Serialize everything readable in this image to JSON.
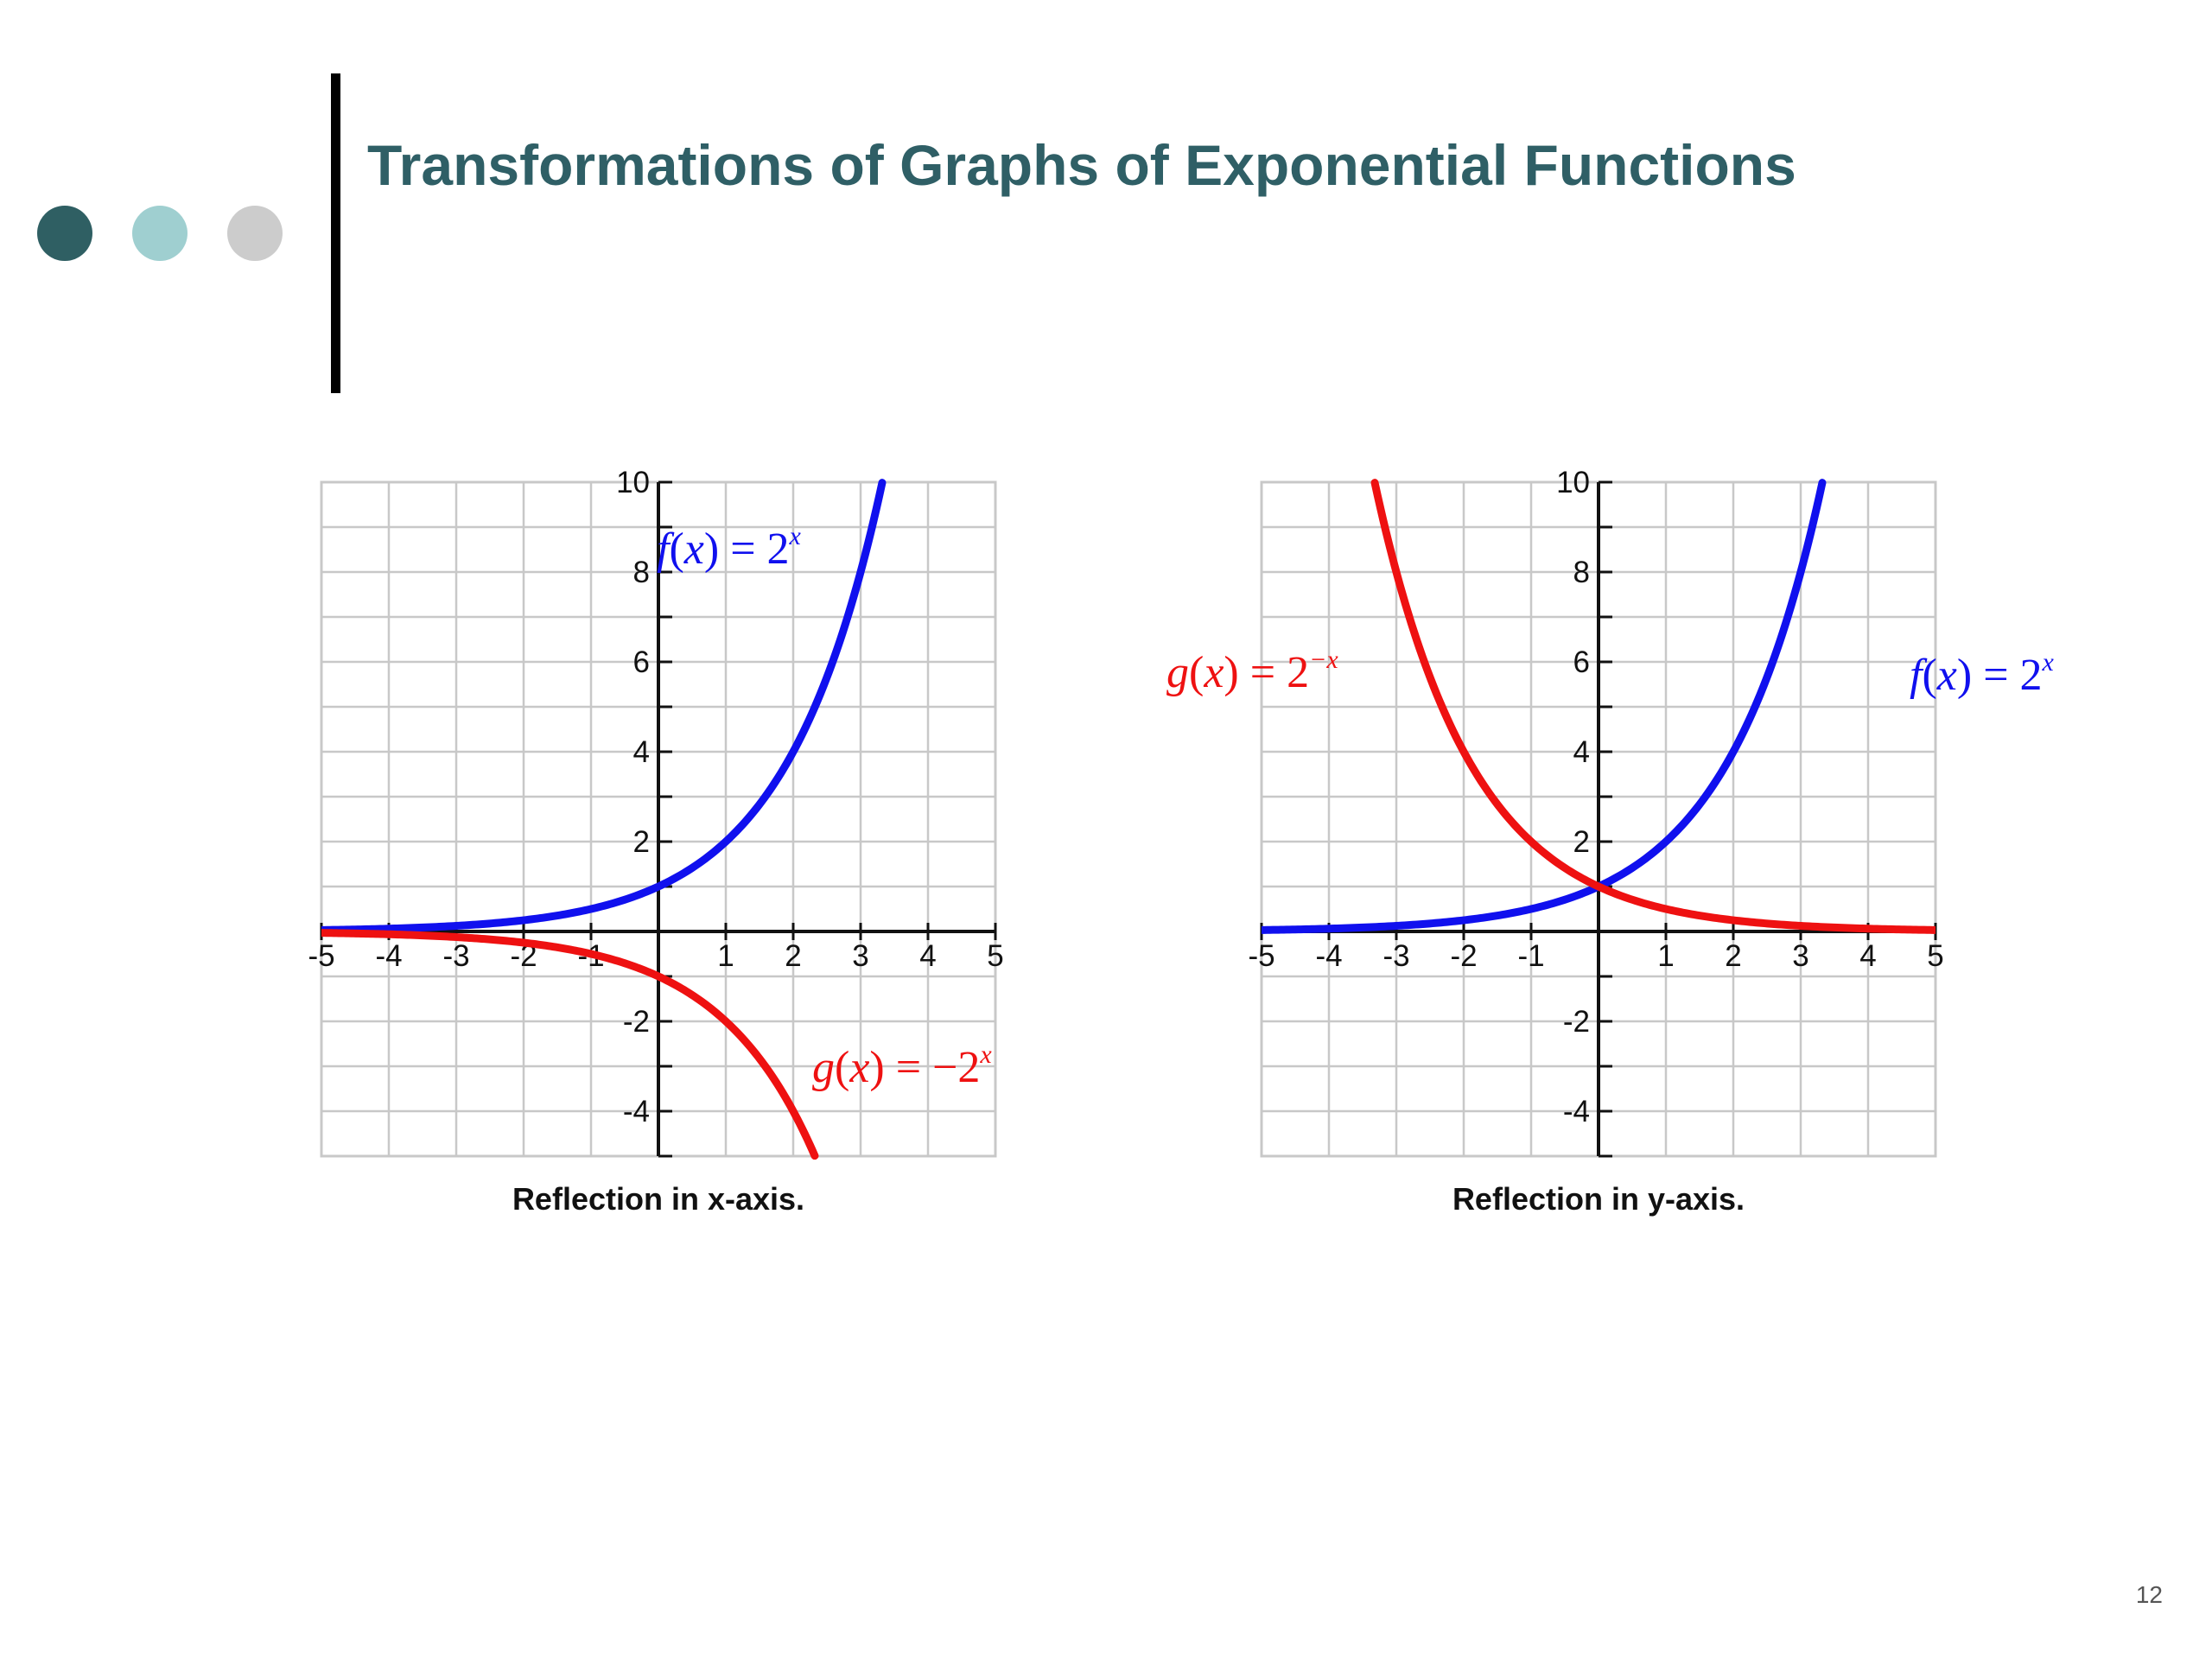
{
  "slide": {
    "title": "Transformations of Graphs of Exponential Functions",
    "page_number": "12",
    "title_color": "#2f5f66",
    "dot_colors": [
      "#2f5f63",
      "#9fcfd0",
      "#cccccc"
    ]
  },
  "chart_data": [
    {
      "type": "line",
      "caption": "Reflection in x-axis.",
      "xlim": [
        -5,
        5
      ],
      "ylim": [
        -5,
        10
      ],
      "x_ticks": [
        -5,
        -4,
        -3,
        -2,
        -1,
        1,
        2,
        3,
        4,
        5
      ],
      "y_ticks": [
        10,
        8,
        6,
        4,
        2,
        -2,
        -4
      ],
      "grid": true,
      "series": [
        {
          "label": "f(x) = 2^x",
          "formula": "2^x",
          "color": "#1010ee",
          "x": [
            -5,
            -4,
            -3,
            -2,
            -1,
            0,
            1,
            2,
            3,
            3.32
          ],
          "y": [
            0.03,
            0.06,
            0.13,
            0.25,
            0.5,
            1,
            2,
            4,
            8,
            10
          ]
        },
        {
          "label": "g(x) = -2^x",
          "formula": "-2^x",
          "color": "#ee1111",
          "x": [
            -5,
            -4,
            -3,
            -2,
            -1,
            0,
            1,
            2,
            2.32
          ],
          "y": [
            -0.03,
            -0.06,
            -0.13,
            -0.25,
            -0.5,
            -1,
            -2,
            -4,
            -5
          ]
        }
      ]
    },
    {
      "type": "line",
      "caption": "Reflection in y-axis.",
      "xlim": [
        -5,
        5
      ],
      "ylim": [
        -5,
        10
      ],
      "x_ticks": [
        -5,
        -4,
        -3,
        -2,
        -1,
        1,
        2,
        3,
        4,
        5
      ],
      "y_ticks": [
        10,
        8,
        6,
        4,
        2,
        -2,
        -4
      ],
      "grid": true,
      "series": [
        {
          "label": "f(x) = 2^x",
          "formula": "2^x",
          "color": "#1010ee",
          "x": [
            -5,
            -4,
            -3,
            -2,
            -1,
            0,
            1,
            2,
            3,
            3.32
          ],
          "y": [
            0.03,
            0.06,
            0.13,
            0.25,
            0.5,
            1,
            2,
            4,
            8,
            10
          ]
        },
        {
          "label": "g(x) = 2^-x",
          "formula": "2^-x",
          "color": "#ee1111",
          "x": [
            -3.32,
            -3,
            -2,
            -1,
            0,
            1,
            2,
            3,
            4,
            5
          ],
          "y": [
            10,
            8,
            4,
            2,
            1,
            0.5,
            0.25,
            0.13,
            0.06,
            0.03
          ]
        }
      ]
    }
  ]
}
